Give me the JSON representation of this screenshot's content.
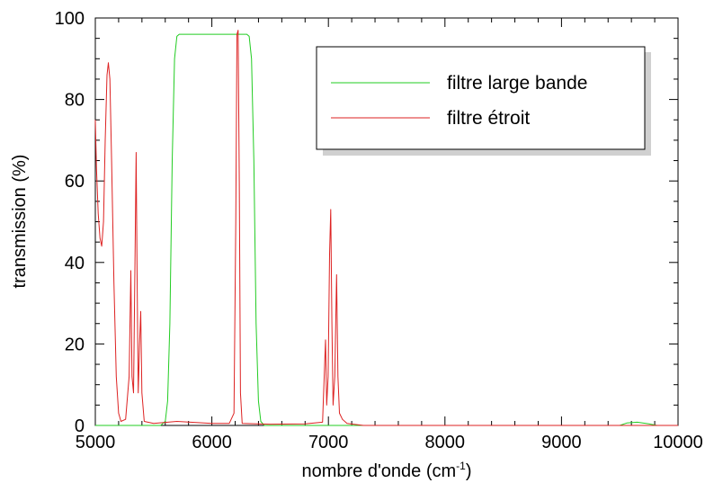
{
  "chart_data": {
    "type": "line",
    "xlabel": "nombre d'onde (cm",
    "xlabel_sup": "-1",
    "xlabel_close": ")",
    "ylabel": "transmission (%)",
    "xlim": [
      5000,
      10000
    ],
    "ylim": [
      0,
      100
    ],
    "x_ticks": [
      5000,
      6000,
      7000,
      8000,
      9000,
      10000
    ],
    "y_ticks": [
      0,
      20,
      40,
      60,
      80,
      100
    ],
    "grid": false,
    "legend_position": "top-right",
    "series": [
      {
        "name": "filtre large bande",
        "color": "#22cc22",
        "points": [
          [
            5000,
            0
          ],
          [
            5560,
            0
          ],
          [
            5600,
            1
          ],
          [
            5620,
            6
          ],
          [
            5640,
            25
          ],
          [
            5660,
            65
          ],
          [
            5680,
            90
          ],
          [
            5700,
            95.5
          ],
          [
            5720,
            96
          ],
          [
            6000,
            96
          ],
          [
            6300,
            96
          ],
          [
            6320,
            95.5
          ],
          [
            6340,
            90
          ],
          [
            6360,
            65
          ],
          [
            6380,
            25
          ],
          [
            6400,
            6
          ],
          [
            6420,
            1
          ],
          [
            6450,
            0
          ],
          [
            9500,
            0
          ],
          [
            9560,
            0.6
          ],
          [
            9650,
            0.8
          ],
          [
            9750,
            0.4
          ],
          [
            9820,
            0
          ],
          [
            10000,
            0
          ]
        ]
      },
      {
        "name": "filtre étroit",
        "color": "#dd2222",
        "points": [
          [
            5000,
            75
          ],
          [
            5010,
            63
          ],
          [
            5025,
            52
          ],
          [
            5040,
            46
          ],
          [
            5055,
            44
          ],
          [
            5070,
            50
          ],
          [
            5085,
            70
          ],
          [
            5100,
            86
          ],
          [
            5112,
            89
          ],
          [
            5125,
            85
          ],
          [
            5140,
            65
          ],
          [
            5160,
            35
          ],
          [
            5180,
            12
          ],
          [
            5200,
            3
          ],
          [
            5220,
            1
          ],
          [
            5260,
            1.5
          ],
          [
            5290,
            12
          ],
          [
            5305,
            38
          ],
          [
            5315,
            12
          ],
          [
            5328,
            8
          ],
          [
            5340,
            40
          ],
          [
            5350,
            67
          ],
          [
            5358,
            38
          ],
          [
            5368,
            8
          ],
          [
            5380,
            20
          ],
          [
            5390,
            28
          ],
          [
            5400,
            8
          ],
          [
            5420,
            1
          ],
          [
            5500,
            0.5
          ],
          [
            5700,
            1
          ],
          [
            6000,
            0.5
          ],
          [
            6150,
            0.5
          ],
          [
            6190,
            3
          ],
          [
            6205,
            50
          ],
          [
            6215,
            96
          ],
          [
            6225,
            97
          ],
          [
            6235,
            60
          ],
          [
            6245,
            8
          ],
          [
            6260,
            0.5
          ],
          [
            6500,
            0.3
          ],
          [
            6800,
            0.4
          ],
          [
            6950,
            0.8
          ],
          [
            6975,
            21
          ],
          [
            6985,
            5
          ],
          [
            6998,
            12
          ],
          [
            7010,
            42
          ],
          [
            7020,
            53
          ],
          [
            7030,
            25
          ],
          [
            7040,
            5
          ],
          [
            7055,
            12
          ],
          [
            7070,
            37
          ],
          [
            7082,
            12
          ],
          [
            7095,
            3
          ],
          [
            7120,
            1.5
          ],
          [
            7160,
            0.5
          ],
          [
            7300,
            0
          ],
          [
            10000,
            0
          ]
        ]
      }
    ]
  }
}
